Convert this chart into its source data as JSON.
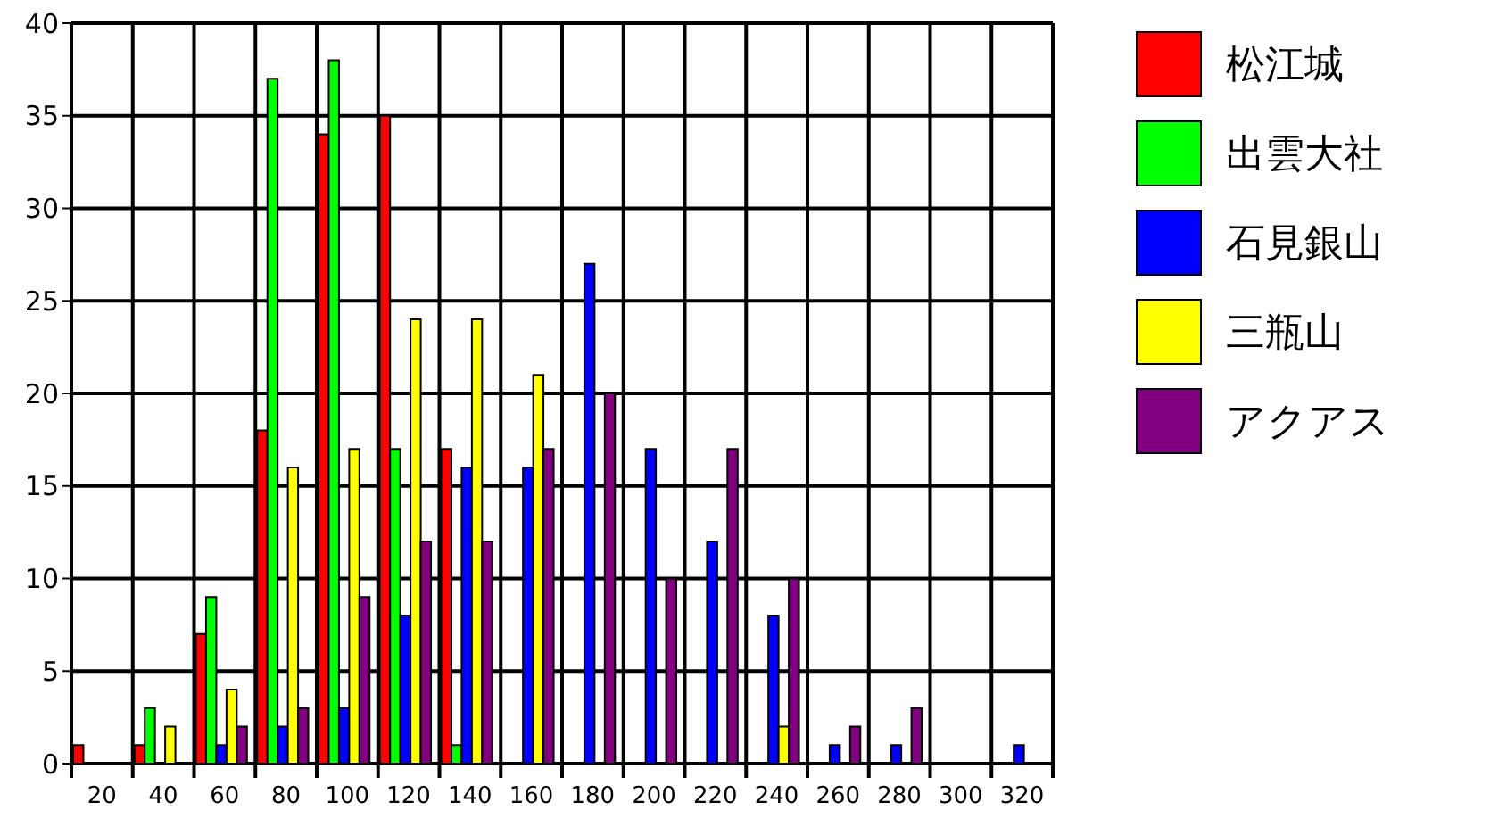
{
  "chart_data": {
    "type": "bar",
    "categories": [
      "20",
      "40",
      "60",
      "80",
      "100",
      "120",
      "140",
      "160",
      "180",
      "200",
      "220",
      "240",
      "260",
      "280",
      "300",
      "320"
    ],
    "series": [
      {
        "name": "松江城",
        "color": "#ff0000",
        "values": [
          1,
          1,
          7,
          18,
          34,
          35,
          17,
          0,
          0,
          0,
          0,
          0,
          0,
          0,
          0,
          0
        ]
      },
      {
        "name": "出雲大社",
        "color": "#00ff00",
        "values": [
          0,
          3,
          9,
          37,
          38,
          17,
          1,
          0,
          0,
          0,
          0,
          0,
          0,
          0,
          0,
          0
        ]
      },
      {
        "name": "石見銀山",
        "color": "#0000ff",
        "values": [
          0,
          0,
          1,
          2,
          3,
          8,
          16,
          16,
          27,
          17,
          12,
          8,
          1,
          1,
          0,
          1
        ]
      },
      {
        "name": "三瓶山",
        "color": "#ffff00",
        "values": [
          0,
          2,
          4,
          16,
          17,
          24,
          24,
          21,
          0,
          0,
          0,
          2,
          0,
          0,
          0,
          0
        ]
      },
      {
        "name": "アクアス",
        "color": "#800080",
        "values": [
          0,
          0,
          2,
          3,
          9,
          12,
          12,
          17,
          20,
          10,
          17,
          10,
          2,
          3,
          0,
          0
        ]
      }
    ],
    "ylim": [
      0,
      40
    ],
    "yticks": [
      0,
      5,
      10,
      15,
      20,
      25,
      30,
      35,
      40
    ],
    "grid": true,
    "legend": "right"
  }
}
